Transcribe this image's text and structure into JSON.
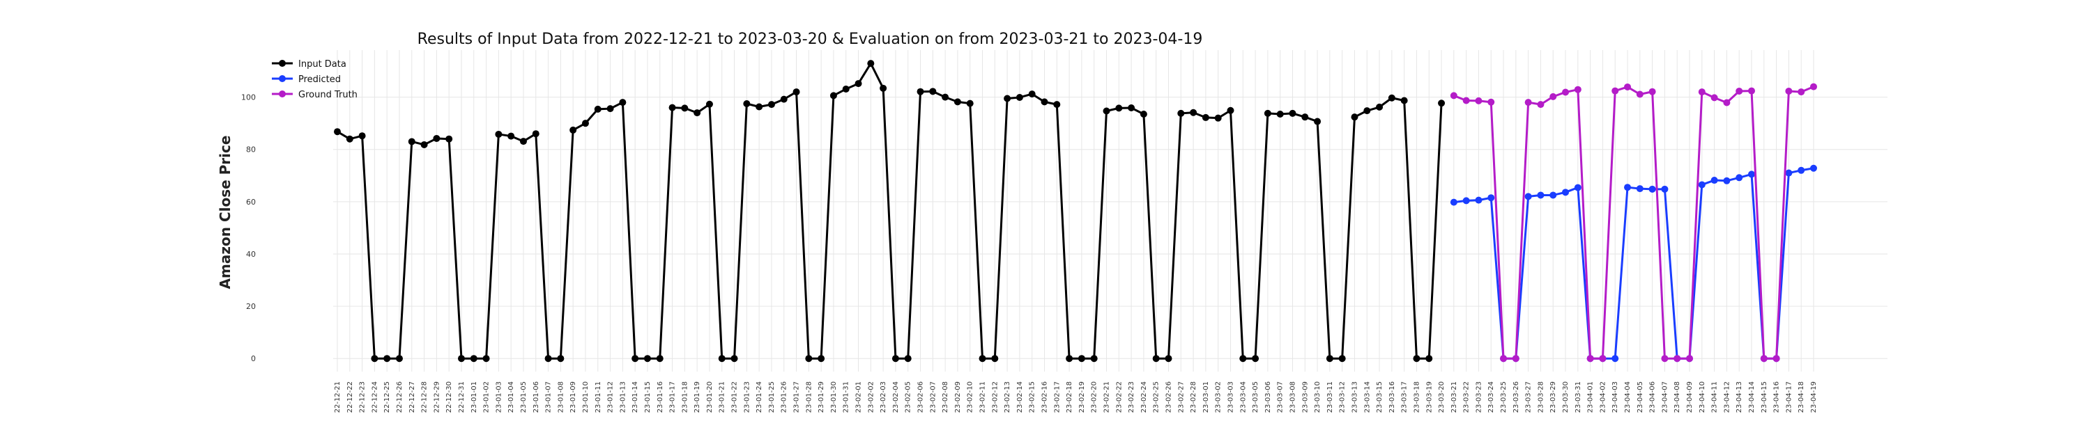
{
  "chart_data": {
    "type": "line",
    "title": "Results of Input Data from 2022-12-21 to 2023-03-20 & Evaluation on from 2023-03-21 to 2023-04-19",
    "xlabel": "",
    "ylabel": "Amazon Close Price",
    "ylim": [
      -5,
      118
    ],
    "y_ticks": [
      0,
      20,
      40,
      60,
      80,
      100
    ],
    "grid": true,
    "legend_position": "top-left",
    "x": [
      "2022-12-21",
      "2022-12-22",
      "2022-12-23",
      "2022-12-24",
      "2022-12-25",
      "2022-12-26",
      "2022-12-27",
      "2022-12-28",
      "2022-12-29",
      "2022-12-30",
      "2022-12-31",
      "2023-01-01",
      "2023-01-02",
      "2023-01-03",
      "2023-01-04",
      "2023-01-05",
      "2023-01-06",
      "2023-01-07",
      "2023-01-08",
      "2023-01-09",
      "2023-01-10",
      "2023-01-11",
      "2023-01-12",
      "2023-01-13",
      "2023-01-14",
      "2023-01-15",
      "2023-01-16",
      "2023-01-17",
      "2023-01-18",
      "2023-01-19",
      "2023-01-20",
      "2023-01-21",
      "2023-01-22",
      "2023-01-23",
      "2023-01-24",
      "2023-01-25",
      "2023-01-26",
      "2023-01-27",
      "2023-01-28",
      "2023-01-29",
      "2023-01-30",
      "2023-01-31",
      "2023-02-01",
      "2023-02-02",
      "2023-02-03",
      "2023-02-04",
      "2023-02-05",
      "2023-02-06",
      "2023-02-07",
      "2023-02-08",
      "2023-02-09",
      "2023-02-10",
      "2023-02-11",
      "2023-02-12",
      "2023-02-13",
      "2023-02-14",
      "2023-02-15",
      "2023-02-16",
      "2023-02-17",
      "2023-02-18",
      "2023-02-19",
      "2023-02-20",
      "2023-02-21",
      "2023-02-22",
      "2023-02-23",
      "2023-02-24",
      "2023-02-25",
      "2023-02-26",
      "2023-02-27",
      "2023-02-28",
      "2023-03-01",
      "2023-03-02",
      "2023-03-03",
      "2023-03-04",
      "2023-03-05",
      "2023-03-06",
      "2023-03-07",
      "2023-03-08",
      "2023-03-09",
      "2023-03-10",
      "2023-03-11",
      "2023-03-12",
      "2023-03-13",
      "2023-03-14",
      "2023-03-15",
      "2023-03-16",
      "2023-03-17",
      "2023-03-18",
      "2023-03-19",
      "2023-03-20",
      "2023-03-21",
      "2023-03-22",
      "2023-03-23",
      "2023-03-24",
      "2023-03-25",
      "2023-03-26",
      "2023-03-27",
      "2023-03-28",
      "2023-03-29",
      "2023-03-30",
      "2023-03-31",
      "2023-04-01",
      "2023-04-02",
      "2023-04-03",
      "2023-04-04",
      "2023-04-05",
      "2023-04-06",
      "2023-04-07",
      "2023-04-08",
      "2023-04-09",
      "2023-04-10",
      "2023-04-11",
      "2023-04-12",
      "2023-04-13",
      "2023-04-14",
      "2023-04-15",
      "2023-04-16",
      "2023-04-17",
      "2023-04-18",
      "2023-04-19"
    ],
    "x_tick_labels": [
      "22-12-21",
      "22-12-22",
      "22-12-23",
      "22-12-24",
      "22-12-25",
      "22-12-26",
      "22-12-27",
      "22-12-28",
      "22-12-29",
      "22-12-30",
      "22-12-31",
      "23-01-01",
      "23-01-02",
      "23-01-03",
      "23-01-04",
      "23-01-05",
      "23-01-06",
      "23-01-07",
      "23-01-08",
      "23-01-09",
      "23-01-10",
      "23-01-11",
      "23-01-12",
      "23-01-13",
      "23-01-14",
      "23-01-15",
      "23-01-16",
      "23-01-17",
      "23-01-18",
      "23-01-19",
      "23-01-20",
      "23-01-21",
      "23-01-22",
      "23-01-23",
      "23-01-24",
      "23-01-25",
      "23-01-26",
      "23-01-27",
      "23-01-28",
      "23-01-29",
      "23-01-30",
      "23-01-31",
      "23-02-01",
      "23-02-02",
      "23-02-03",
      "23-02-04",
      "23-02-05",
      "23-02-06",
      "23-02-07",
      "23-02-08",
      "23-02-09",
      "23-02-10",
      "23-02-11",
      "23-02-12",
      "23-02-13",
      "23-02-14",
      "23-02-15",
      "23-02-16",
      "23-02-17",
      "23-02-18",
      "23-02-19",
      "23-02-20",
      "23-02-21",
      "23-02-22",
      "23-02-23",
      "23-02-24",
      "23-02-25",
      "23-02-26",
      "23-02-27",
      "23-02-28",
      "23-03-01",
      "23-03-02",
      "23-03-03",
      "23-03-04",
      "23-03-05",
      "23-03-06",
      "23-03-07",
      "23-03-08",
      "23-03-09",
      "23-03-10",
      "23-03-11",
      "23-03-12",
      "23-03-13",
      "23-03-14",
      "23-03-15",
      "23-03-16",
      "23-03-17",
      "23-03-18",
      "23-03-19",
      "23-03-20",
      "23-03-21",
      "23-03-22",
      "23-03-23",
      "23-03-24",
      "23-03-25",
      "23-03-26",
      "23-03-27",
      "23-03-28",
      "23-03-29",
      "23-03-30",
      "23-03-31",
      "23-04-01",
      "23-04-02",
      "23-04-03",
      "23-04-04",
      "23-04-05",
      "23-04-06",
      "23-04-07",
      "23-04-08",
      "23-04-09",
      "23-04-10",
      "23-04-11",
      "23-04-12",
      "23-04-13",
      "23-04-14",
      "23-04-15",
      "23-04-16",
      "23-04-17",
      "23-04-18",
      "23-04-19"
    ],
    "series": [
      {
        "name": "Input Data",
        "color": "#000000",
        "values": [
          86.8,
          84.0,
          85.2,
          0,
          0,
          0,
          83.0,
          81.8,
          84.2,
          84.0,
          0,
          0,
          0,
          85.8,
          85.1,
          83.1,
          86.0,
          0,
          0,
          87.4,
          90.0,
          95.4,
          95.6,
          98.0,
          0,
          0,
          0,
          96.0,
          95.8,
          94.0,
          97.3,
          0,
          0,
          97.5,
          96.3,
          97.2,
          99.2,
          102.0,
          0,
          0,
          100.6,
          103.1,
          105.2,
          112.9,
          103.4,
          0,
          0,
          102.1,
          102.2,
          100.0,
          98.2,
          97.6,
          0,
          0,
          99.5,
          99.9,
          101.2,
          98.2,
          97.2,
          0,
          0,
          0,
          94.7,
          95.8,
          95.9,
          93.5,
          0,
          0,
          93.8,
          94.1,
          92.2,
          92.0,
          94.9,
          0,
          0,
          93.8,
          93.5,
          93.8,
          92.4,
          90.7,
          0,
          0,
          92.4,
          94.8,
          96.2,
          99.7,
          98.7,
          0,
          0,
          97.7,
          null,
          null,
          null,
          null,
          null,
          null,
          null,
          null,
          null,
          null,
          null,
          null,
          null,
          null,
          null,
          null,
          null,
          null,
          null,
          null,
          null,
          null,
          null,
          null,
          null,
          null,
          null,
          null,
          null,
          null
        ]
      },
      {
        "name": "Predicted",
        "color": "#1a3dff",
        "values": [
          null,
          null,
          null,
          null,
          null,
          null,
          null,
          null,
          null,
          null,
          null,
          null,
          null,
          null,
          null,
          null,
          null,
          null,
          null,
          null,
          null,
          null,
          null,
          null,
          null,
          null,
          null,
          null,
          null,
          null,
          null,
          null,
          null,
          null,
          null,
          null,
          null,
          null,
          null,
          null,
          null,
          null,
          null,
          null,
          null,
          null,
          null,
          null,
          null,
          null,
          null,
          null,
          null,
          null,
          null,
          null,
          null,
          null,
          null,
          null,
          null,
          null,
          null,
          null,
          null,
          null,
          null,
          null,
          null,
          null,
          null,
          null,
          null,
          null,
          null,
          null,
          null,
          null,
          null,
          null,
          null,
          null,
          null,
          null,
          null,
          null,
          null,
          null,
          null,
          null,
          59.8,
          60.4,
          60.6,
          61.5,
          0,
          0,
          62.0,
          62.5,
          62.5,
          63.6,
          65.4,
          0,
          0,
          0,
          65.5,
          65.0,
          64.8,
          64.8,
          0,
          0,
          66.5,
          68.2,
          68.0,
          69.2,
          70.5,
          0,
          0,
          71.0,
          72.0,
          72.8
        ]
      },
      {
        "name": "Ground Truth",
        "color": "#b41cc8",
        "values": [
          null,
          null,
          null,
          null,
          null,
          null,
          null,
          null,
          null,
          null,
          null,
          null,
          null,
          null,
          null,
          null,
          null,
          null,
          null,
          null,
          null,
          null,
          null,
          null,
          null,
          null,
          null,
          null,
          null,
          null,
          null,
          null,
          null,
          null,
          null,
          null,
          null,
          null,
          null,
          null,
          null,
          null,
          null,
          null,
          null,
          null,
          null,
          null,
          null,
          null,
          null,
          null,
          null,
          null,
          null,
          null,
          null,
          null,
          null,
          null,
          null,
          null,
          null,
          null,
          null,
          null,
          null,
          null,
          null,
          null,
          null,
          null,
          null,
          null,
          null,
          null,
          null,
          null,
          null,
          null,
          null,
          null,
          null,
          null,
          null,
          null,
          null,
          null,
          null,
          null,
          100.6,
          98.7,
          98.6,
          98.1,
          0,
          0,
          98.0,
          97.2,
          100.2,
          101.9,
          102.9,
          0,
          0,
          102.4,
          103.9,
          101.1,
          102.1,
          0,
          0,
          0,
          102.0,
          99.8,
          97.9,
          102.3,
          102.4,
          0,
          0,
          102.3,
          102.0,
          104.0
        ]
      }
    ]
  }
}
